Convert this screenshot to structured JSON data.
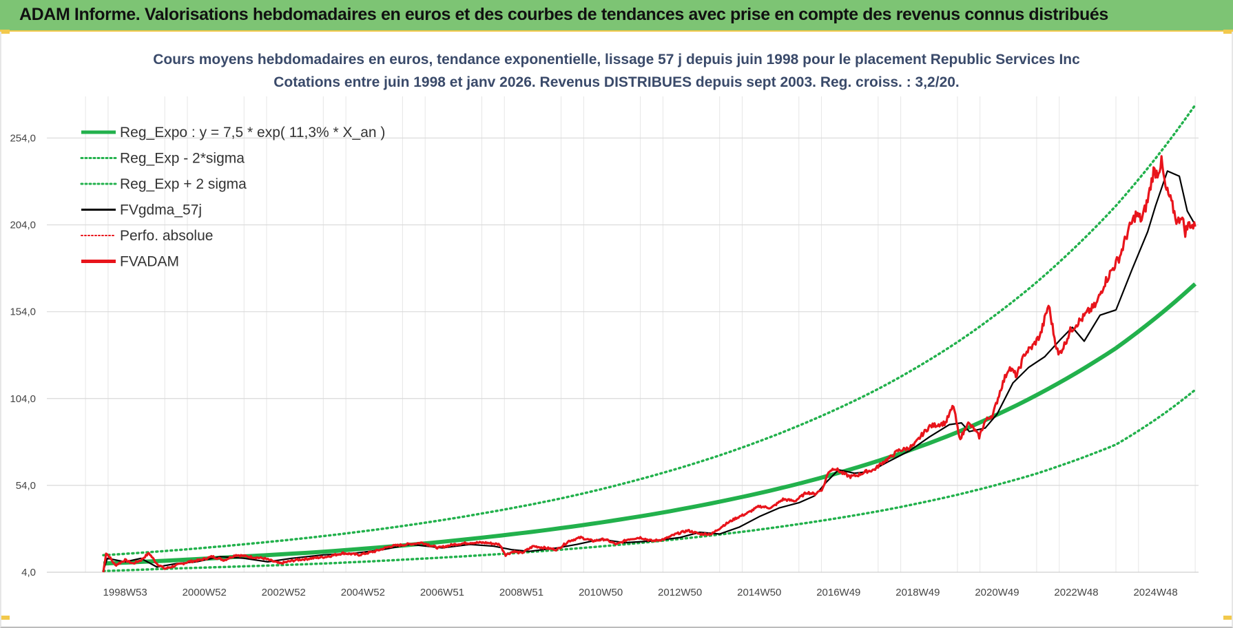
{
  "header": {
    "title": "ADAM Informe. Valorisations hebdomadaires en euros et des courbes de tendances avec prise en compte des revenus connus distribués"
  },
  "colors": {
    "header_bg": "#7dc474",
    "reg_green": "#22b14c",
    "fvgdma_black": "#000000",
    "fvadam_red": "#e8141b",
    "grid": "#e6e6e6"
  },
  "chart_data": {
    "type": "line",
    "title_line1": "Cours moyens hebdomadaires en euros, tendance exponentielle, lissage 57 j depuis juin 1998 pour le placement Republic Services Inc",
    "title_line2": "Cotations entre juin 1998 et janv 2026. Revenus DISTRIBUES depuis sept 2003. Reg. croiss. : 3,2/20.",
    "x_range": [
      1998.45,
      2026.05
    ],
    "ylim": [
      4.0,
      274.0
    ],
    "y_ticks": [
      {
        "value": 4.0,
        "label": "4,0"
      },
      {
        "value": 54.0,
        "label": "54,0"
      },
      {
        "value": 104.0,
        "label": "104,0"
      },
      {
        "value": 154.0,
        "label": "154,0"
      },
      {
        "value": 204.0,
        "label": "204,0"
      },
      {
        "value": 254.0,
        "label": "254,0"
      }
    ],
    "x_ticks": [
      {
        "value": 1999.0,
        "label": "1998W53"
      },
      {
        "value": 2001.0,
        "label": "2000W52"
      },
      {
        "value": 2003.0,
        "label": "2002W52"
      },
      {
        "value": 2005.0,
        "label": "2004W52"
      },
      {
        "value": 2007.0,
        "label": "2006W51"
      },
      {
        "value": 2009.0,
        "label": "2008W51"
      },
      {
        "value": 2011.0,
        "label": "2010W50"
      },
      {
        "value": 2013.0,
        "label": "2012W50"
      },
      {
        "value": 2015.0,
        "label": "2014W50"
      },
      {
        "value": 2017.0,
        "label": "2016W49"
      },
      {
        "value": 2019.0,
        "label": "2018W49"
      },
      {
        "value": 2021.0,
        "label": "2020W49"
      },
      {
        "value": 2023.0,
        "label": "2022W48"
      },
      {
        "value": 2025.0,
        "label": "2024W48"
      }
    ],
    "legend": [
      {
        "name": "Reg_Expo : y = 7,5 * exp( 11,3% *  X_an )",
        "style": "thick-solid",
        "color": "#22b14c"
      },
      {
        "name": "Reg_Exp - 2*sigma",
        "style": "dotted",
        "color": "#22b14c"
      },
      {
        "name": "Reg_Exp + 2 sigma",
        "style": "dotted",
        "color": "#22b14c"
      },
      {
        "name": "FVgdma_57j",
        "style": "solid",
        "color": "#000000"
      },
      {
        "name": "Perfo. absolue",
        "style": "dotted",
        "color": "#e8141b"
      },
      {
        "name": "FVADAM",
        "style": "thick-solid",
        "color": "#e8141b"
      }
    ],
    "series": [
      {
        "name": "Reg_Expo",
        "x": [
          1998.45,
          2000,
          2002,
          2004,
          2006,
          2008,
          2010,
          2012,
          2014,
          2016,
          2018,
          2020,
          2022,
          2024,
          2026.0
        ],
        "values": [
          9.0,
          10.6,
          13.1,
          15.8,
          19.4,
          23.9,
          29.4,
          36.2,
          44.6,
          55.0,
          68.1,
          84.6,
          106.0,
          133.0,
          170.0
        ]
      },
      {
        "name": "Reg_Exp - 2*sigma",
        "x": [
          1998.45,
          2000,
          2002,
          2004,
          2006,
          2008,
          2010,
          2012,
          2014,
          2016,
          2018,
          2020,
          2022,
          2024,
          2026.0
        ],
        "values": [
          4.7,
          6.0,
          7.4,
          9.0,
          11.2,
          13.8,
          17.0,
          20.9,
          25.7,
          31.7,
          39.1,
          48.6,
          60.8,
          77.5,
          109.0
        ]
      },
      {
        "name": "Reg_Exp + 2 sigma",
        "x": [
          1998.45,
          2000,
          2002,
          2004,
          2006,
          2008,
          2010,
          2012,
          2014,
          2016,
          2018,
          2020,
          2022,
          2024,
          2026.0
        ],
        "values": [
          13.8,
          16.2,
          20.1,
          24.8,
          30.6,
          37.8,
          46.5,
          57.6,
          71.3,
          88.4,
          109.5,
          136.5,
          171.0,
          215.0,
          273.0
        ]
      },
      {
        "name": "FVgdma_57j",
        "x": [
          1998.45,
          1998.55,
          1999.0,
          1999.4,
          1999.8,
          2000.3,
          2000.8,
          2001.4,
          2002.0,
          2002.6,
          2003.2,
          2004.0,
          2004.8,
          2005.5,
          2006.2,
          2007.0,
          2007.7,
          2008.3,
          2008.75,
          2009.2,
          2009.9,
          2010.4,
          2011.0,
          2011.6,
          2012.3,
          2013.0,
          2013.5,
          2014.0,
          2014.5,
          2015.0,
          2015.5,
          2016.0,
          2016.4,
          2016.7,
          2017.0,
          2017.4,
          2017.8,
          2018.2,
          2018.8,
          2019.3,
          2019.8,
          2020.1,
          2020.3,
          2020.7,
          2021.0,
          2021.4,
          2021.8,
          2022.2,
          2022.6,
          2022.9,
          2023.2,
          2023.6,
          2024.0,
          2024.4,
          2024.8,
          2025.0,
          2025.3,
          2025.6,
          2025.8,
          2026.0
        ],
        "values": [
          5,
          12,
          10,
          12,
          7,
          9,
          10,
          13,
          12,
          10,
          12,
          14,
          15,
          17,
          20,
          18,
          20,
          19,
          17,
          16,
          18,
          20,
          23,
          21,
          22,
          24,
          27,
          26,
          30,
          36,
          41,
          44,
          48,
          56,
          63,
          61,
          62,
          67,
          74,
          82,
          89,
          90,
          85,
          87,
          95,
          113,
          122,
          128,
          138,
          145,
          137,
          152,
          155,
          178,
          200,
          215,
          235,
          232,
          212,
          204
        ]
      },
      {
        "name": "FVADAM",
        "x": [
          1998.45,
          1998.52,
          1998.6,
          1998.75,
          1999.0,
          1999.2,
          1999.4,
          1999.6,
          1999.8,
          2000.0,
          2000.3,
          2000.6,
          2000.9,
          2001.2,
          2001.5,
          2001.8,
          2002.1,
          2002.5,
          2002.9,
          2003.3,
          2003.7,
          2004.1,
          2004.5,
          2004.9,
          2005.3,
          2005.7,
          2006.1,
          2006.5,
          2006.9,
          2007.3,
          2007.7,
          2008.1,
          2008.45,
          2008.6,
          2008.8,
          2009.0,
          2009.3,
          2009.6,
          2009.9,
          2010.2,
          2010.5,
          2010.8,
          2011.1,
          2011.4,
          2011.7,
          2012.0,
          2012.3,
          2012.6,
          2012.9,
          2013.2,
          2013.5,
          2013.8,
          2014.1,
          2014.4,
          2014.7,
          2015.0,
          2015.3,
          2015.6,
          2015.9,
          2016.2,
          2016.4,
          2016.6,
          2016.75,
          2016.9,
          2017.1,
          2017.3,
          2017.5,
          2017.7,
          2017.9,
          2018.1,
          2018.3,
          2018.5,
          2018.7,
          2018.9,
          2019.1,
          2019.3,
          2019.5,
          2019.7,
          2019.9,
          2020.05,
          2020.15,
          2020.25,
          2020.4,
          2020.55,
          2020.7,
          2020.9,
          2021.1,
          2021.3,
          2021.5,
          2021.7,
          2021.9,
          2022.1,
          2022.3,
          2022.45,
          2022.55,
          2022.7,
          2022.85,
          2023.0,
          2023.15,
          2023.3,
          2023.5,
          2023.7,
          2023.9,
          2024.1,
          2024.3,
          2024.5,
          2024.65,
          2024.8,
          2024.95,
          2025.05,
          2025.15,
          2025.25,
          2025.35,
          2025.45,
          2025.55,
          2025.65,
          2025.75,
          2025.85,
          2025.95,
          2026.0
        ],
        "values": [
          4,
          15,
          13,
          8,
          11,
          9,
          11,
          15,
          9,
          6,
          8,
          10,
          11,
          13,
          11,
          14,
          13,
          12,
          9,
          11,
          12,
          13,
          15,
          14,
          16,
          19,
          20,
          21,
          18,
          20,
          21,
          21,
          20,
          14,
          16,
          15,
          19,
          18,
          17,
          22,
          24,
          22,
          23,
          20,
          23,
          24,
          22,
          23,
          26,
          28,
          26,
          26,
          31,
          35,
          38,
          42,
          41,
          46,
          45,
          50,
          49,
          52,
          62,
          64,
          61,
          59,
          60,
          62,
          63,
          67,
          70,
          74,
          75,
          77,
          83,
          88,
          89,
          90,
          100,
          81,
          84,
          90,
          87,
          82,
          91,
          95,
          110,
          122,
          117,
          130,
          134,
          141,
          158,
          139,
          129,
          135,
          143,
          147,
          150,
          154,
          158,
          170,
          178,
          186,
          200,
          210,
          207,
          218,
          235,
          234,
          240,
          225,
          220,
          213,
          205,
          210,
          200,
          205,
          203,
          203
        ]
      },
      {
        "name": "Perfo. absolue",
        "x": [],
        "values": []
      }
    ]
  }
}
